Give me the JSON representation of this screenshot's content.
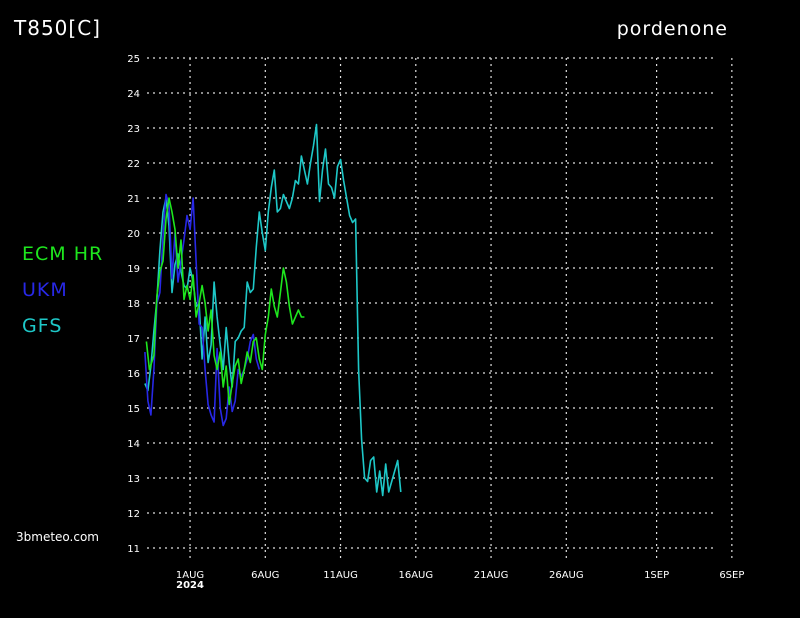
{
  "header": {
    "title": "T850[C]",
    "location": "pordenone"
  },
  "watermark": "3bmeteo.com",
  "chart_data": {
    "type": "line",
    "ylim": [
      11,
      25
    ],
    "xlim": [
      0,
      41
    ],
    "grid": true,
    "legend_position": "left",
    "y_ticks": [
      11,
      12,
      13,
      14,
      15,
      16,
      17,
      18,
      19,
      20,
      21,
      22,
      23,
      24,
      25
    ],
    "x_ticks": [
      {
        "x": 1,
        "label": "1AUG"
      },
      {
        "x": 6,
        "label": "6AUG"
      },
      {
        "x": 11,
        "label": "11AUG"
      },
      {
        "x": 16,
        "label": "16AUG"
      },
      {
        "x": 21,
        "label": "21AUG"
      },
      {
        "x": 26,
        "label": "26AUG"
      },
      {
        "x": 32,
        "label": "1SEP"
      },
      {
        "x": 37,
        "label": "6SEP"
      }
    ],
    "x_sublabel": {
      "x": 1,
      "label": "2024"
    },
    "series": [
      {
        "name": "ECM HR",
        "color": "#1ee61e",
        "x": [
          -1.9,
          -1.7,
          -1.4,
          -1.2,
          -1,
          -0.8,
          -0.6,
          -0.4,
          -0.2,
          0,
          0.2,
          0.4,
          0.6,
          0.8,
          1,
          1.2,
          1.4,
          1.6,
          1.8,
          2,
          2.2,
          2.4,
          2.6,
          2.8,
          3,
          3.2,
          3.4,
          3.6,
          3.8,
          4,
          4.2,
          4.4,
          4.6,
          4.8,
          5,
          5.2,
          5.4,
          5.6,
          5.8,
          6,
          6.2,
          6.4,
          6.6,
          6.8,
          7,
          7.2,
          7.4,
          7.6,
          7.8,
          8,
          8.2,
          8.4,
          8.6
        ],
        "values": [
          16.9,
          16.1,
          16.5,
          18.2,
          18.9,
          19.2,
          20.4,
          21.0,
          20.6,
          20.1,
          19.0,
          19.8,
          18.1,
          18.5,
          18.1,
          18.8,
          17.6,
          18.0,
          18.5,
          18.0,
          17.2,
          17.8,
          16.5,
          16.1,
          16.6,
          15.6,
          16.2,
          15.1,
          15.7,
          16.2,
          16.4,
          15.7,
          16.1,
          16.6,
          16.3,
          16.9,
          17.0,
          16.4,
          16.1,
          17.1,
          17.6,
          18.4,
          17.9,
          17.6,
          18.3,
          19.0,
          18.6,
          17.9,
          17.4,
          17.6,
          17.8,
          17.6,
          17.6
        ]
      },
      {
        "name": "UKM",
        "color": "#2828e6",
        "x": [
          -2,
          -1.8,
          -1.6,
          -1.4,
          -1.2,
          -1,
          -0.8,
          -0.6,
          -0.4,
          -0.2,
          0,
          0.2,
          0.4,
          0.6,
          0.8,
          1,
          1.2,
          1.4,
          1.6,
          1.8,
          2,
          2.2,
          2.4,
          2.6,
          2.8,
          3,
          3.2,
          3.4,
          3.6,
          3.8,
          4,
          4.2,
          4.4,
          4.6,
          4.8,
          5,
          5.2,
          5.4,
          5.6
        ],
        "values": [
          16.6,
          15.2,
          14.8,
          16.1,
          18.0,
          18.3,
          19.9,
          21.1,
          20.8,
          18.7,
          20.0,
          18.6,
          19.2,
          19.8,
          20.5,
          20.1,
          21.0,
          19.2,
          17.4,
          17.3,
          16.1,
          15.1,
          14.8,
          14.6,
          16.7,
          15.0,
          14.5,
          14.7,
          15.6,
          14.9,
          15.2,
          16.1,
          15.9,
          16.1,
          16.4,
          16.9,
          17.1,
          16.4,
          16.1
        ]
      },
      {
        "name": "GFS",
        "color": "#1ec8c8",
        "x": [
          -2,
          -1.8,
          -1.6,
          -1.4,
          -1.2,
          -1,
          -0.8,
          -0.6,
          -0.4,
          -0.2,
          0,
          0.2,
          0.4,
          0.6,
          0.8,
          1,
          1.2,
          1.4,
          1.6,
          1.8,
          2,
          2.2,
          2.4,
          2.6,
          2.8,
          3,
          3.2,
          3.4,
          3.6,
          3.8,
          4,
          4.2,
          4.4,
          4.6,
          4.8,
          5,
          5.2,
          5.4,
          5.6,
          5.8,
          6,
          6.2,
          6.4,
          6.6,
          6.8,
          7,
          7.2,
          7.4,
          7.6,
          7.8,
          8,
          8.2,
          8.4,
          8.6,
          8.8,
          9,
          9.2,
          9.4,
          9.6,
          9.8,
          10,
          10.2,
          10.4,
          10.6,
          10.8,
          11,
          11.2,
          11.4,
          11.6,
          11.8,
          12,
          12.2,
          12.4,
          12.6,
          12.8,
          13,
          13.2,
          13.4,
          13.6,
          13.8,
          14,
          14.2,
          14.4,
          14.6,
          14.8,
          15
        ],
        "values": [
          15.7,
          15.5,
          16.2,
          17.2,
          18.1,
          19.5,
          20.6,
          21.0,
          20.2,
          18.3,
          19.1,
          19.4,
          18.9,
          18.5,
          18.4,
          19.0,
          18.6,
          17.9,
          18.0,
          16.4,
          17.6,
          16.3,
          16.8,
          18.6,
          17.6,
          16.8,
          16.1,
          17.3,
          16.3,
          15.6,
          16.9,
          17.0,
          17.2,
          17.3,
          18.6,
          18.3,
          18.4,
          19.6,
          20.6,
          20.0,
          19.5,
          20.6,
          21.3,
          21.8,
          20.6,
          20.7,
          21.1,
          20.9,
          20.7,
          21.0,
          21.5,
          21.4,
          22.2,
          21.8,
          21.4,
          22.0,
          22.5,
          23.1,
          20.9,
          21.8,
          22.4,
          21.4,
          21.3,
          21.0,
          21.9,
          22.1,
          21.5,
          21.0,
          20.5,
          20.3,
          20.4,
          16.1,
          14.1,
          13.0,
          12.9,
          13.5,
          13.6,
          12.6,
          13.2,
          12.5,
          13.4,
          12.6,
          12.9,
          13.2,
          13.5,
          12.6
        ],
        "note_end_x": 15
      }
    ]
  }
}
